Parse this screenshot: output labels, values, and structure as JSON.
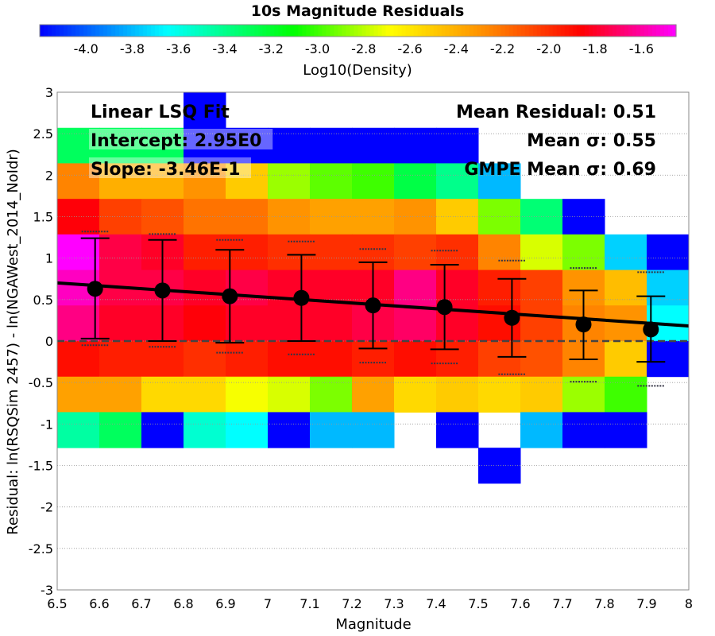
{
  "chart_data": {
    "type": "heatmap",
    "title": "10s Magnitude Residuals",
    "xlabel": "Magnitude",
    "ylabel": "Residual: ln(RSQSim 2457) - ln(NGAWest_2014_NoIdr)",
    "xlim": [
      6.5,
      8.0
    ],
    "ylim": [
      -3.0,
      3.0
    ],
    "x_ticks": [
      "6.5",
      "6.6",
      "6.7",
      "6.8",
      "6.9",
      "7",
      "7.1",
      "7.2",
      "7.3",
      "7.4",
      "7.5",
      "7.6",
      "7.7",
      "7.8",
      "7.9",
      "8"
    ],
    "y_ticks": [
      "3",
      "2.5",
      "2",
      "1.5",
      "1",
      "0.5",
      "0",
      "-0.5",
      "-1",
      "-1.5",
      "-2",
      "-2.5",
      "-3"
    ],
    "grid": true,
    "colorbar": {
      "label": "Log10(Density)",
      "min": -4.2,
      "max": -1.45,
      "ticks": [
        "-4.0",
        "-3.8",
        "-3.6",
        "-3.4",
        "-3.2",
        "-3.0",
        "-2.8",
        "-2.6",
        "-2.4",
        "-2.2",
        "-2.0",
        "-1.8",
        "-1.6"
      ]
    },
    "cell_width": 0.1,
    "cell_height": 0.4286,
    "rows": [
      {
        "y_top": 3.0,
        "cells": [
          {
            "x": 6.8,
            "v": -4.2
          }
        ]
      },
      {
        "y_top": 2.571,
        "cells": [
          {
            "x": 6.5,
            "v": -3.3
          },
          {
            "x": 6.6,
            "v": -3.3
          },
          {
            "x": 6.7,
            "v": -3.3
          },
          {
            "x": 6.8,
            "v": -4.2
          },
          {
            "x": 6.9,
            "v": -4.2
          },
          {
            "x": 7.0,
            "v": -4.2
          },
          {
            "x": 7.1,
            "v": -4.2
          },
          {
            "x": 7.2,
            "v": -4.2
          },
          {
            "x": 7.3,
            "v": -4.2
          },
          {
            "x": 7.4,
            "v": -4.2
          }
        ]
      },
      {
        "y_top": 2.143,
        "cells": [
          {
            "x": 6.5,
            "v": -2.25
          },
          {
            "x": 6.6,
            "v": -2.4
          },
          {
            "x": 6.7,
            "v": -2.4
          },
          {
            "x": 6.8,
            "v": -2.3
          },
          {
            "x": 6.9,
            "v": -2.5
          },
          {
            "x": 7.0,
            "v": -2.85
          },
          {
            "x": 7.1,
            "v": -2.95
          },
          {
            "x": 7.2,
            "v": -3.0
          },
          {
            "x": 7.3,
            "v": -3.25
          },
          {
            "x": 7.4,
            "v": -3.4
          },
          {
            "x": 7.5,
            "v": -3.8
          }
        ]
      },
      {
        "y_top": 1.714,
        "cells": [
          {
            "x": 6.5,
            "v": -1.85
          },
          {
            "x": 6.6,
            "v": -2.05
          },
          {
            "x": 6.7,
            "v": -2.1
          },
          {
            "x": 6.8,
            "v": -2.2
          },
          {
            "x": 6.9,
            "v": -2.2
          },
          {
            "x": 7.0,
            "v": -2.3
          },
          {
            "x": 7.1,
            "v": -2.35
          },
          {
            "x": 7.2,
            "v": -2.35
          },
          {
            "x": 7.3,
            "v": -2.3
          },
          {
            "x": 7.4,
            "v": -2.5
          },
          {
            "x": 7.5,
            "v": -2.9
          },
          {
            "x": 7.6,
            "v": -3.35
          },
          {
            "x": 7.7,
            "v": -4.2
          }
        ]
      },
      {
        "y_top": 1.286,
        "cells": [
          {
            "x": 6.5,
            "v": -1.45
          },
          {
            "x": 6.6,
            "v": -1.75
          },
          {
            "x": 6.7,
            "v": -1.8
          },
          {
            "x": 6.8,
            "v": -1.95
          },
          {
            "x": 6.9,
            "v": -1.95
          },
          {
            "x": 7.0,
            "v": -2.0
          },
          {
            "x": 7.1,
            "v": -2.0
          },
          {
            "x": 7.2,
            "v": -2.0
          },
          {
            "x": 7.3,
            "v": -2.05
          },
          {
            "x": 7.4,
            "v": -2.0
          },
          {
            "x": 7.5,
            "v": -2.25
          },
          {
            "x": 7.6,
            "v": -2.75
          },
          {
            "x": 7.7,
            "v": -2.9
          },
          {
            "x": 7.8,
            "v": -3.75
          },
          {
            "x": 7.9,
            "v": -4.2
          }
        ]
      },
      {
        "y_top": 0.857,
        "cells": [
          {
            "x": 6.5,
            "v": -1.55
          },
          {
            "x": 6.6,
            "v": -1.75
          },
          {
            "x": 6.7,
            "v": -1.75
          },
          {
            "x": 6.8,
            "v": -1.8
          },
          {
            "x": 6.9,
            "v": -1.75
          },
          {
            "x": 7.0,
            "v": -1.8
          },
          {
            "x": 7.1,
            "v": -1.8
          },
          {
            "x": 7.2,
            "v": -1.8
          },
          {
            "x": 7.3,
            "v": -1.65
          },
          {
            "x": 7.4,
            "v": -1.8
          },
          {
            "x": 7.5,
            "v": -1.95
          },
          {
            "x": 7.6,
            "v": -2.05
          },
          {
            "x": 7.7,
            "v": -2.3
          },
          {
            "x": 7.8,
            "v": -2.45
          },
          {
            "x": 7.9,
            "v": -3.75
          }
        ]
      },
      {
        "y_top": 0.429,
        "cells": [
          {
            "x": 6.5,
            "v": -1.65
          },
          {
            "x": 6.6,
            "v": -1.8
          },
          {
            "x": 6.7,
            "v": -1.8
          },
          {
            "x": 6.8,
            "v": -1.85
          },
          {
            "x": 6.9,
            "v": -1.8
          },
          {
            "x": 7.0,
            "v": -1.8
          },
          {
            "x": 7.1,
            "v": -1.8
          },
          {
            "x": 7.2,
            "v": -1.75
          },
          {
            "x": 7.3,
            "v": -1.7
          },
          {
            "x": 7.4,
            "v": -1.8
          },
          {
            "x": 7.5,
            "v": -1.9
          },
          {
            "x": 7.6,
            "v": -2.05
          },
          {
            "x": 7.7,
            "v": -2.25
          },
          {
            "x": 7.8,
            "v": -2.3
          },
          {
            "x": 7.9,
            "v": -3.65
          }
        ]
      },
      {
        "y_top": 0.0,
        "cells": [
          {
            "x": 6.5,
            "v": -1.9
          },
          {
            "x": 6.6,
            "v": -1.95
          },
          {
            "x": 6.7,
            "v": -1.95
          },
          {
            "x": 6.8,
            "v": -2.0
          },
          {
            "x": 6.9,
            "v": -1.95
          },
          {
            "x": 7.0,
            "v": -1.9
          },
          {
            "x": 7.1,
            "v": -1.9
          },
          {
            "x": 7.2,
            "v": -1.95
          },
          {
            "x": 7.3,
            "v": -1.9
          },
          {
            "x": 7.4,
            "v": -1.95
          },
          {
            "x": 7.5,
            "v": -2.05
          },
          {
            "x": 7.6,
            "v": -2.1
          },
          {
            "x": 7.7,
            "v": -2.25
          },
          {
            "x": 7.8,
            "v": -2.5
          },
          {
            "x": 7.9,
            "v": -4.2
          }
        ]
      },
      {
        "y_top": -0.429,
        "cells": [
          {
            "x": 6.5,
            "v": -2.35
          },
          {
            "x": 6.6,
            "v": -2.35
          },
          {
            "x": 6.7,
            "v": -2.55
          },
          {
            "x": 6.8,
            "v": -2.55
          },
          {
            "x": 6.9,
            "v": -2.7
          },
          {
            "x": 7.0,
            "v": -2.75
          },
          {
            "x": 7.1,
            "v": -2.9
          },
          {
            "x": 7.2,
            "v": -2.35
          },
          {
            "x": 7.3,
            "v": -2.55
          },
          {
            "x": 7.4,
            "v": -2.5
          },
          {
            "x": 7.5,
            "v": -2.55
          },
          {
            "x": 7.6,
            "v": -2.5
          },
          {
            "x": 7.7,
            "v": -2.85
          },
          {
            "x": 7.8,
            "v": -3.0
          }
        ]
      },
      {
        "y_top": -0.857,
        "cells": [
          {
            "x": 6.5,
            "v": -3.45
          },
          {
            "x": 6.6,
            "v": -3.3
          },
          {
            "x": 6.7,
            "v": -4.2
          },
          {
            "x": 6.8,
            "v": -3.55
          },
          {
            "x": 6.9,
            "v": -3.65
          },
          {
            "x": 7.0,
            "v": -4.2
          },
          {
            "x": 7.1,
            "v": -3.8
          },
          {
            "x": 7.2,
            "v": -3.8
          },
          {
            "x": 7.4,
            "v": -4.2
          },
          {
            "x": 7.6,
            "v": -3.8
          },
          {
            "x": 7.7,
            "v": -4.2
          },
          {
            "x": 7.8,
            "v": -4.2
          }
        ]
      },
      {
        "y_top": -1.286,
        "cells": [
          {
            "x": 7.5,
            "v": -4.2
          }
        ]
      }
    ],
    "bins": [
      {
        "x": 6.59,
        "mean": 0.63,
        "lo": 0.03,
        "hi": 1.24,
        "gmpe_lo": -0.05,
        "gmpe_hi": 1.32
      },
      {
        "x": 6.75,
        "mean": 0.61,
        "lo": 0.0,
        "hi": 1.22,
        "gmpe_lo": -0.07,
        "gmpe_hi": 1.29
      },
      {
        "x": 6.91,
        "mean": 0.54,
        "lo": -0.02,
        "hi": 1.1,
        "gmpe_lo": -0.14,
        "gmpe_hi": 1.22
      },
      {
        "x": 7.08,
        "mean": 0.52,
        "lo": 0.0,
        "hi": 1.04,
        "gmpe_lo": -0.16,
        "gmpe_hi": 1.2
      },
      {
        "x": 7.25,
        "mean": 0.43,
        "lo": -0.09,
        "hi": 0.95,
        "gmpe_lo": -0.26,
        "gmpe_hi": 1.11
      },
      {
        "x": 7.42,
        "mean": 0.41,
        "lo": -0.1,
        "hi": 0.92,
        "gmpe_lo": -0.27,
        "gmpe_hi": 1.09
      },
      {
        "x": 7.58,
        "mean": 0.28,
        "lo": -0.19,
        "hi": 0.75,
        "gmpe_lo": -0.4,
        "gmpe_hi": 0.97
      },
      {
        "x": 7.75,
        "mean": 0.2,
        "lo": -0.22,
        "hi": 0.61,
        "gmpe_lo": -0.49,
        "gmpe_hi": 0.88
      },
      {
        "x": 7.91,
        "mean": 0.14,
        "lo": -0.25,
        "hi": 0.54,
        "gmpe_lo": -0.54,
        "gmpe_hi": 0.83
      }
    ],
    "fit": {
      "intercept": 2.95,
      "slope": -0.346
    },
    "zero_line": 0,
    "annotations": {
      "fit_label": "Linear LSQ Fit",
      "intercept_label": "Intercept: 2.95E0",
      "slope_label": "Slope: -3.46E-1",
      "mean_residual": "Mean Residual: 0.51",
      "mean_sigma": "Mean σ: 0.55",
      "gmpe_sigma": "GMPE Mean σ: 0.69"
    }
  }
}
